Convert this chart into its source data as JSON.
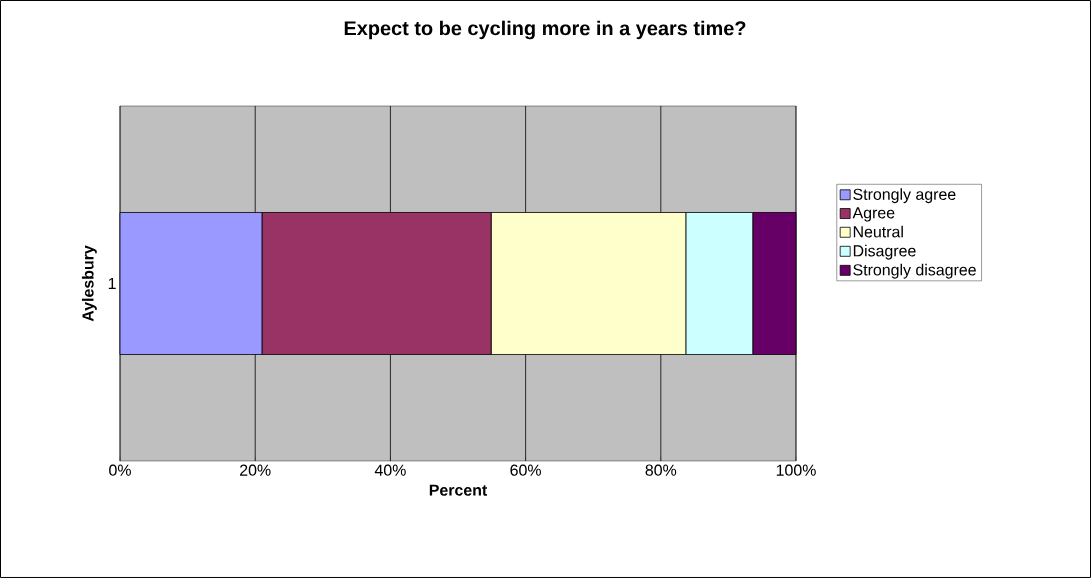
{
  "chart_data": {
    "type": "bar",
    "orientation": "horizontal",
    "stacked": true,
    "title": "Expect to be cycling more in a years time?",
    "xlabel": "Percent",
    "ylabel": "Aylesbury",
    "categories": [
      "1"
    ],
    "series": [
      {
        "name": "Strongly agree",
        "color": "#9999ff",
        "values": [
          21.0
        ]
      },
      {
        "name": "Agree",
        "color": "#993366",
        "values": [
          33.9
        ]
      },
      {
        "name": "Neutral",
        "color": "#ffffcc",
        "values": [
          28.8
        ]
      },
      {
        "name": "Disagree",
        "color": "#ccffff",
        "values": [
          9.9
        ]
      },
      {
        "name": "Strongly disagree",
        "color": "#660066",
        "values": [
          6.4
        ]
      }
    ],
    "xlim": [
      0,
      100
    ],
    "xticks": [
      {
        "value": 0,
        "label": "0%"
      },
      {
        "value": 20,
        "label": "20%"
      },
      {
        "value": 40,
        "label": "40%"
      },
      {
        "value": 60,
        "label": "60%"
      },
      {
        "value": 80,
        "label": "80%"
      },
      {
        "value": 100,
        "label": "100%"
      }
    ],
    "grid": "x",
    "legend": "right"
  }
}
